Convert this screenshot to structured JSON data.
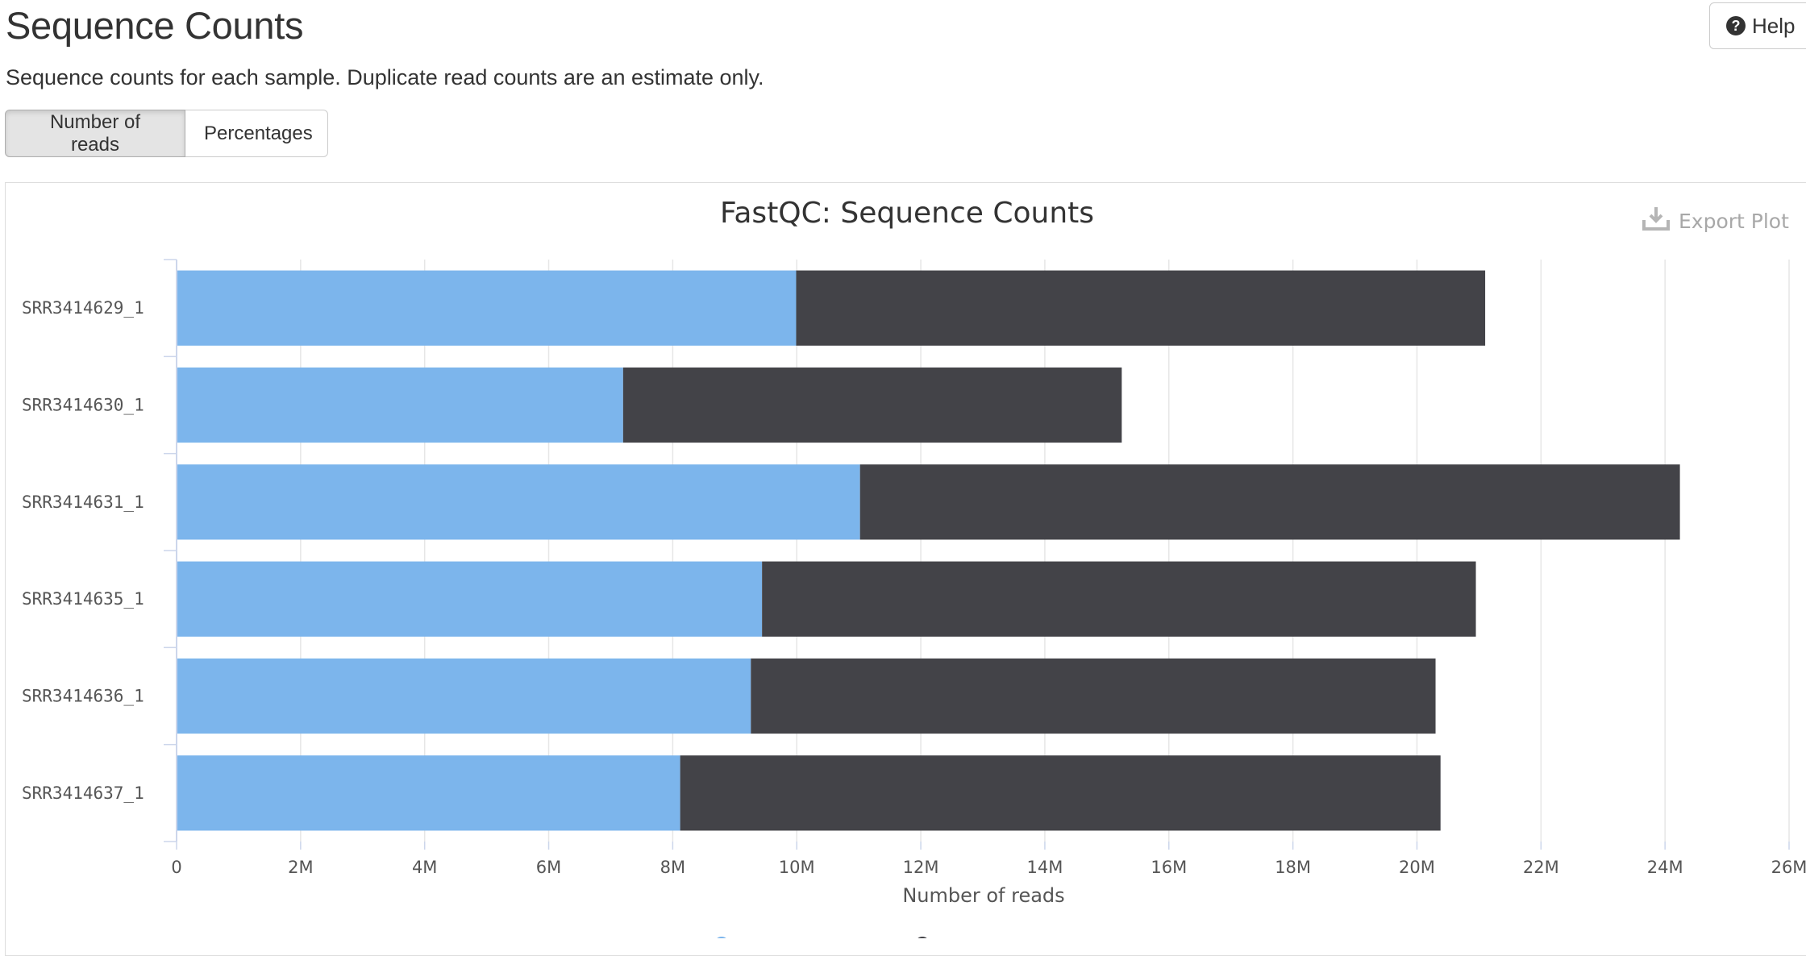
{
  "header": {
    "title": "Sequence Counts",
    "description": "Sequence counts for each sample. Duplicate read counts are an estimate only.",
    "help_label": "Help"
  },
  "toggle": {
    "active_label": "Number of reads",
    "other_label": "Percentages"
  },
  "export": {
    "label": "Export Plot",
    "icon": "download-icon"
  },
  "colors": {
    "unique": "#7cb5ec",
    "duplicate": "#434348",
    "grid": "#e6e6e6",
    "axis": "#ccd6eb"
  },
  "chart_data": {
    "type": "bar",
    "orientation": "horizontal",
    "stacked": true,
    "title": "FastQC: Sequence Counts",
    "xlabel": "Number of reads",
    "ylabel": "",
    "xlim": [
      0,
      26000000
    ],
    "x_ticks": [
      0,
      2000000,
      4000000,
      6000000,
      8000000,
      10000000,
      12000000,
      14000000,
      16000000,
      18000000,
      20000000,
      22000000,
      24000000,
      26000000
    ],
    "x_tick_labels": [
      "0",
      "2M",
      "4M",
      "6M",
      "8M",
      "10M",
      "12M",
      "14M",
      "16M",
      "18M",
      "20M",
      "22M",
      "24M",
      "26M"
    ],
    "grid": true,
    "categories": [
      "SRR3414629_1",
      "SRR3414630_1",
      "SRR3414631_1",
      "SRR3414635_1",
      "SRR3414636_1",
      "SRR3414637_1"
    ],
    "series": [
      {
        "values": [
          9990000,
          7200000,
          11020000,
          9440000,
          9260000,
          8120000
        ]
      },
      {
        "values": [
          11110000,
          8040000,
          13220000,
          11510000,
          11040000,
          12260000
        ]
      }
    ]
  }
}
